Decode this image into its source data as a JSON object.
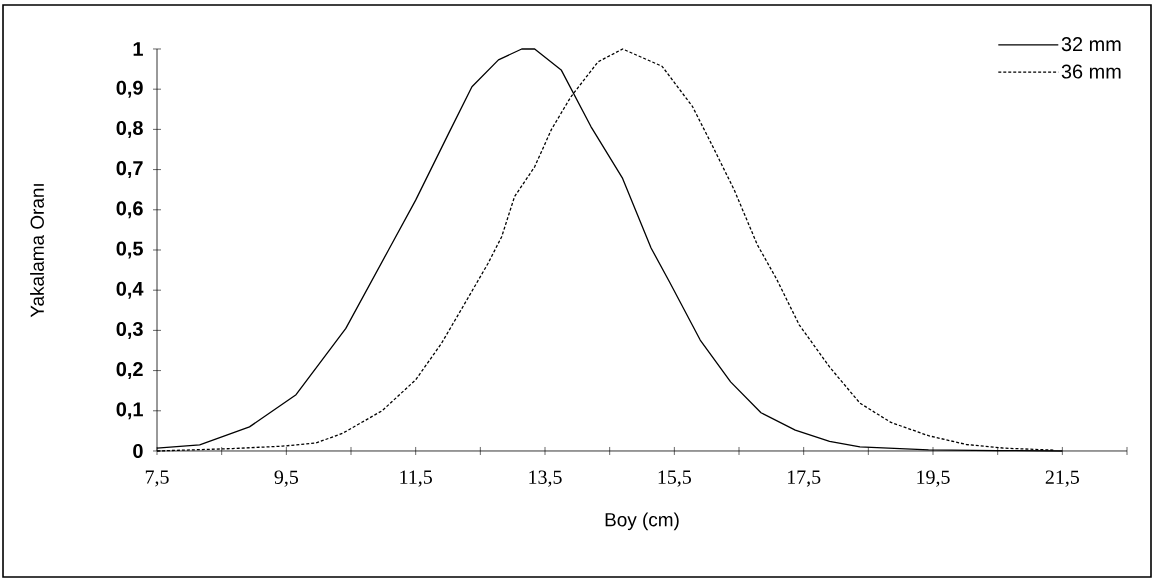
{
  "chart_data": {
    "type": "line",
    "xlabel": "Boy (cm)",
    "ylabel": "Yakalama Oranı",
    "xlim": [
      7.5,
      22.5
    ],
    "xticks": [
      {
        "value": 7.5,
        "label": "7,5"
      },
      {
        "value": 8.5,
        "label": null
      },
      {
        "value": 9.5,
        "label": "9,5"
      },
      {
        "value": 10.5,
        "label": null
      },
      {
        "value": 11.5,
        "label": "11,5"
      },
      {
        "value": 12.5,
        "label": null
      },
      {
        "value": 13.5,
        "label": "13,5"
      },
      {
        "value": 14.5,
        "label": null
      },
      {
        "value": 15.5,
        "label": "15,5"
      },
      {
        "value": 16.5,
        "label": null
      },
      {
        "value": 17.5,
        "label": "17,5"
      },
      {
        "value": 18.5,
        "label": null
      },
      {
        "value": 19.5,
        "label": "19,5"
      },
      {
        "value": 20.5,
        "label": null
      },
      {
        "value": 21.5,
        "label": "21,5"
      },
      {
        "value": 22.5,
        "label": null
      }
    ],
    "ylim": [
      0,
      1
    ],
    "yticks": [
      0,
      {
        "value": 0.1,
        "label": "0,1"
      },
      {
        "value": 0.2,
        "label": "0,2"
      },
      {
        "value": 0.3,
        "label": "0,3"
      },
      {
        "value": 0.4,
        "label": "0,4"
      },
      {
        "value": 0.5,
        "label": "0,5"
      },
      {
        "value": 0.6,
        "label": "0,6"
      },
      {
        "value": 0.7,
        "label": "0,7"
      },
      {
        "value": 0.8,
        "label": "0,8"
      },
      {
        "value": 0.9,
        "label": "0,9"
      },
      1
    ],
    "legend": "top right",
    "grid": false,
    "series": [
      {
        "name": "32 mm",
        "color": "#000000",
        "line_style": "solid",
        "x": [
          7.5,
          8.16,
          8.93,
          9.65,
          10.42,
          11.08,
          11.5,
          12.01,
          12.37,
          12.78,
          13.14,
          13.34,
          13.75,
          14.21,
          14.7,
          15.14,
          15.43,
          15.9,
          16.37,
          16.84,
          17.37,
          17.9,
          18.37,
          19.43,
          20.5,
          21.5
        ],
        "values": [
          0.007,
          0.015,
          0.06,
          0.14,
          0.305,
          0.5,
          0.624,
          0.79,
          0.906,
          0.973,
          1.0,
          1.0,
          0.948,
          0.807,
          0.678,
          0.505,
          0.419,
          0.276,
          0.172,
          0.095,
          0.052,
          0.024,
          0.01,
          0.003,
          0.001,
          0.0
        ]
      },
      {
        "name": "36 mm",
        "color": "#000000",
        "line_style": "dashed",
        "x": [
          7.5,
          8.67,
          9.44,
          9.96,
          10.37,
          10.98,
          11.5,
          11.9,
          12.26,
          12.62,
          12.83,
          13.03,
          13.34,
          13.6,
          13.9,
          14.32,
          14.7,
          15.31,
          15.78,
          16.08,
          16.43,
          16.78,
          17.08,
          17.43,
          17.9,
          18.37,
          18.85,
          19.43,
          20.02,
          20.61,
          21.38
        ],
        "values": [
          0.0,
          0.006,
          0.012,
          0.02,
          0.044,
          0.1,
          0.177,
          0.268,
          0.367,
          0.467,
          0.533,
          0.633,
          0.707,
          0.8,
          0.881,
          0.968,
          1.0,
          0.957,
          0.857,
          0.762,
          0.648,
          0.514,
          0.428,
          0.314,
          0.209,
          0.119,
          0.071,
          0.038,
          0.016,
          0.007,
          0.002
        ]
      }
    ]
  }
}
